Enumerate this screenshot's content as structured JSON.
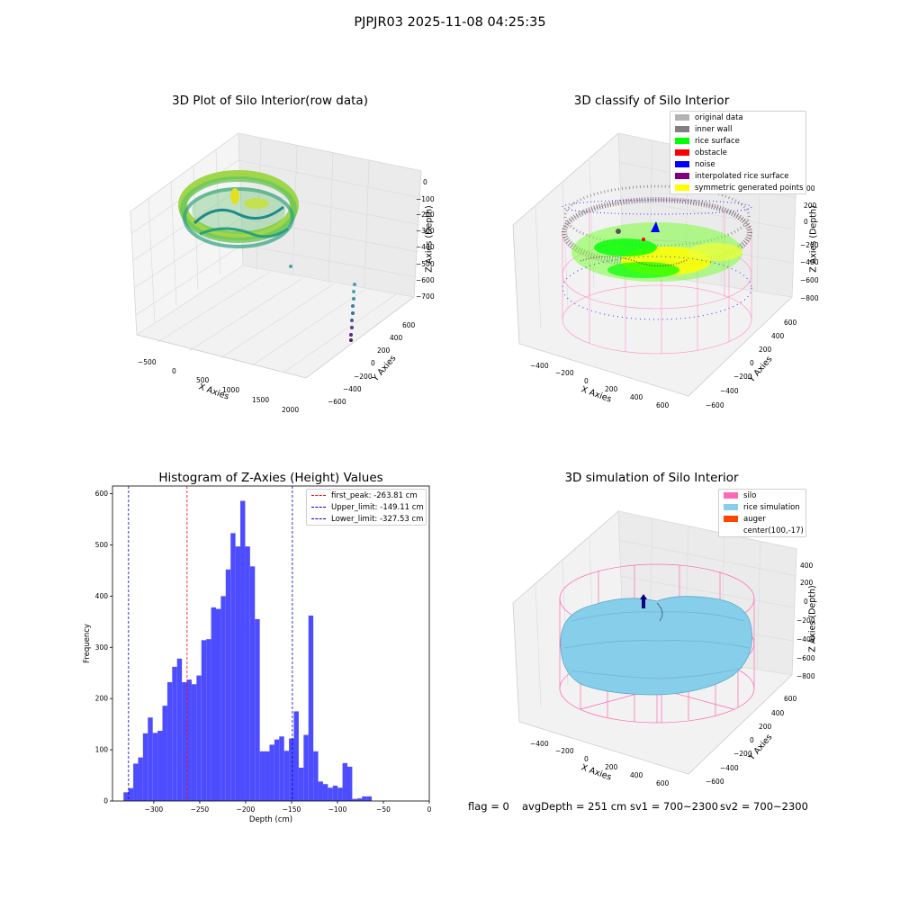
{
  "figure": {
    "suptitle": "PJPJR03 2025-11-08 04:25:35"
  },
  "panel1": {
    "title": "3D Plot of Silo Interior(row data)",
    "xlabel": "X Axies",
    "ylabel": "Y Axies",
    "zlabel": "Z Axies (Depth)",
    "xticks": [
      "−500",
      "0",
      "500",
      "1000",
      "1500",
      "2000"
    ],
    "yticks": [
      "−600",
      "−400",
      "−200",
      "0",
      "200",
      "400",
      "600"
    ],
    "zticks": [
      "0",
      "−100",
      "−200",
      "−300",
      "−400",
      "−500",
      "−600",
      "−700"
    ]
  },
  "panel2": {
    "title": "3D classify of Silo Interior",
    "xlabel": "X Axies",
    "ylabel": "Y Axies",
    "zlabel": "Z Axies (Depth)",
    "xticks": [
      "−400",
      "−200",
      "0",
      "200",
      "400",
      "600"
    ],
    "yticks": [
      "−600",
      "−400",
      "−200",
      "0",
      "200",
      "400",
      "600"
    ],
    "zticks": [
      "200",
      "0",
      "−200",
      "−400",
      "−600",
      "−800"
    ],
    "ztick_partial": "00",
    "legend": [
      {
        "label": "original data",
        "color": "#b3b3b3"
      },
      {
        "label": "inner wall",
        "color": "#808080"
      },
      {
        "label": "rice surface",
        "color": "#00ff00"
      },
      {
        "label": "obstacle",
        "color": "#ff0000"
      },
      {
        "label": "noise",
        "color": "#0000ff"
      },
      {
        "label": "interpolated rice surface",
        "color": "#800080"
      },
      {
        "label": "symmetric generated points",
        "color": "#ffff00"
      }
    ]
  },
  "panel3": {
    "title": "Histogram of Z-Axies (Height) Values",
    "legend": [
      {
        "label": "first_peak: -263.81 cm",
        "color": "#ff0000"
      },
      {
        "label": "Upper_limit: -149.11 cm",
        "color": "#0000cc"
      },
      {
        "label": "Lower_limit: -327.53 cm",
        "color": "#0000cc"
      }
    ]
  },
  "panel4": {
    "title": "3D simulation of Silo Interior",
    "xlabel": "X Axies",
    "ylabel": "Y Axies",
    "zlabel": "Z Axies (Depth)",
    "xticks": [
      "−400",
      "−200",
      "0",
      "200",
      "400",
      "600"
    ],
    "yticks": [
      "−600",
      "−400",
      "−200",
      "0",
      "200",
      "400",
      "600"
    ],
    "zticks": [
      "400",
      "200",
      "0",
      "−200",
      "−400",
      "−600",
      "−800"
    ],
    "legend": [
      {
        "label": "silo",
        "color": "#ff69b4"
      },
      {
        "label": "rice simulation",
        "color": "#87ceeb"
      },
      {
        "label": "auger",
        "color": "#ff4500"
      },
      {
        "label": "center(100,-17)",
        "color": "#ffffff"
      }
    ]
  },
  "status": {
    "flag": "flag = 0",
    "avg_depth": "avgDepth = 251 cm",
    "sv1": "sv1 = 700~2300",
    "sv2": "sv2 = 700~2300"
  },
  "chart_data": {
    "type": "bar",
    "title": "Histogram of Z-Axies (Height) Values",
    "xlabel": "Depth (cm)",
    "ylabel": "Frequency",
    "xlim": [
      -345,
      0
    ],
    "ylim": [
      0,
      615
    ],
    "xticks": [
      -300,
      -250,
      -200,
      -150,
      -100,
      -50,
      0
    ],
    "yticks": [
      0,
      100,
      200,
      300,
      400,
      500,
      600
    ],
    "bin_width": 5.3,
    "bin_start": -333,
    "values": [
      17,
      25,
      73,
      85,
      132,
      163,
      133,
      137,
      186,
      232,
      262,
      278,
      232,
      237,
      228,
      245,
      314,
      316,
      378,
      375,
      400,
      452,
      523,
      497,
      586,
      497,
      458,
      355,
      97,
      97,
      110,
      120,
      126,
      98,
      122,
      175,
      65,
      129,
      362,
      97,
      38,
      33,
      26,
      30,
      26,
      74,
      67,
      4,
      5,
      9,
      9
    ],
    "vlines": [
      {
        "name": "first_peak: -263.81 cm",
        "x": -263.81,
        "color": "#ff0000"
      },
      {
        "name": "Upper_limit: -149.11 cm",
        "x": -149.11,
        "color": "#0000cc"
      },
      {
        "name": "Lower_limit: -327.53 cm",
        "x": -327.53,
        "color": "#0000cc"
      }
    ],
    "bar_color": "#4d4dff",
    "legend_position": "upper right"
  }
}
